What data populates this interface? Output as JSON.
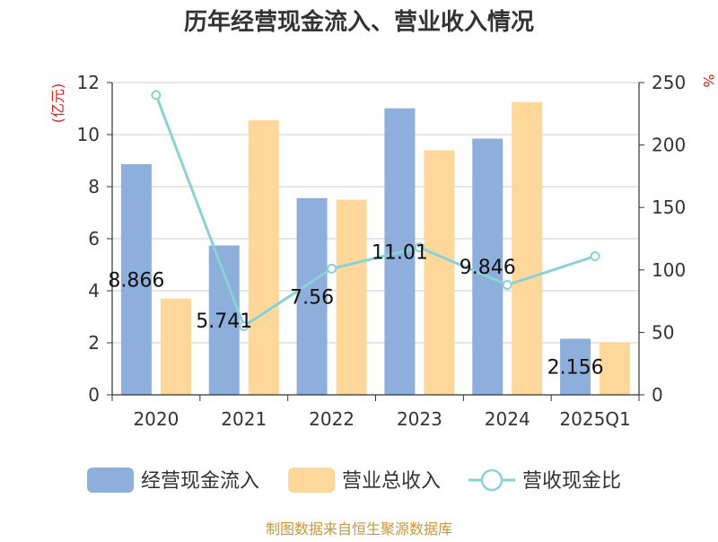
{
  "chart_data": {
    "type": "bar",
    "title": "历年经营现金流入、营业收入情况",
    "categories": [
      "2020",
      "2021",
      "2022",
      "2023",
      "2024",
      "2025Q1"
    ],
    "y_left": {
      "unit": "(亿元)",
      "range": [
        0,
        12
      ],
      "ticks": [
        "0",
        "2",
        "4",
        "6",
        "8",
        "10",
        "12"
      ]
    },
    "y_right": {
      "unit": "%",
      "range": [
        0,
        250
      ],
      "ticks": [
        "0",
        "50",
        "100",
        "150",
        "200",
        "250"
      ]
    },
    "series": [
      {
        "name": "经营现金流入",
        "type": "bar",
        "axis": "left",
        "color": "#8eaedc",
        "values": [
          8.866,
          5.741,
          7.56,
          11.01,
          9.846,
          2.156
        ],
        "labels": [
          "8.866",
          "5.741",
          "7.56",
          "11.01",
          "9.846",
          "2.156"
        ]
      },
      {
        "name": "营业总收入",
        "type": "bar",
        "axis": "right_none",
        "color": "#fdd89a",
        "values": [
          3.7,
          10.55,
          7.5,
          9.4,
          11.25,
          2.0
        ]
      },
      {
        "name": "营收现金比",
        "type": "line",
        "axis": "right",
        "color": "#8ad2d6",
        "values": [
          240,
          55,
          101,
          118,
          88,
          111
        ]
      }
    ],
    "grid": true,
    "legend": "bottom"
  },
  "footer": "制图数据来自恒生聚源数据库"
}
